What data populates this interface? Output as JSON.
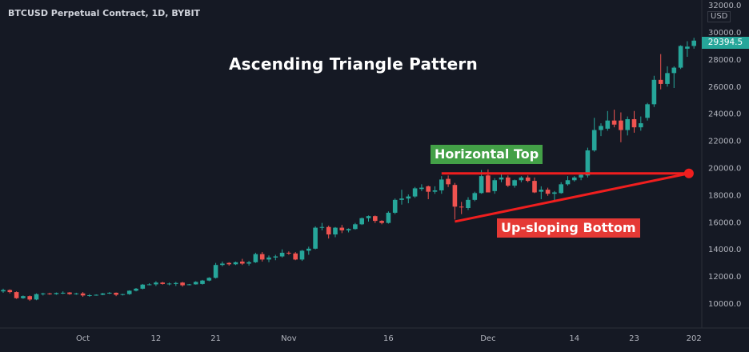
{
  "chart_data": {
    "type": "candlestick",
    "symbol_title": "BTCUSD Perpetual Contract, 1D, BYBIT",
    "title": "Ascending Triangle Pattern",
    "currency": "USD",
    "last_price": "29394.5",
    "ylim": [
      9000,
      32500
    ],
    "y_ticks": [
      "32000.0",
      "30000.0",
      "28000.0",
      "26000.0",
      "24000.0",
      "22000.0",
      "20000.0",
      "18000.0",
      "16000.0",
      "14000.0",
      "12000.0",
      "10000.0"
    ],
    "x_ticks": [
      {
        "label": "Oct",
        "date": "2020-10-01"
      },
      {
        "label": "12",
        "date": "2020-10-12"
      },
      {
        "label": "21",
        "date": "2020-10-21"
      },
      {
        "label": "Nov",
        "date": "2020-11-01"
      },
      {
        "label": "16",
        "date": "2020-11-16"
      },
      {
        "label": "Dec",
        "date": "2020-12-01"
      },
      {
        "label": "14",
        "date": "2020-12-14"
      },
      {
        "label": "23",
        "date": "2020-12-23"
      },
      {
        "label": "202",
        "date": "2021-01-01"
      }
    ],
    "colors": {
      "up": "#26a69a",
      "down": "#ef5350",
      "background": "#151924",
      "trendline": "#f01e1e",
      "top_label": "#43a047",
      "bottom_label": "#e53935"
    },
    "annotations": {
      "horizontal_top": {
        "label": "Horizontal Top",
        "price": 19600,
        "from": "2020-11-24",
        "to": "2020-12-31"
      },
      "upsloping_bottom": {
        "label": "Up-sloping Bottom",
        "from_date": "2020-11-26",
        "from_price": 16050,
        "to_date": "2020-12-31",
        "to_price": 19600
      }
    },
    "candles": [
      [
        "2020-09-19",
        10900,
        11100,
        10800,
        11000
      ],
      [
        "2020-09-20",
        11000,
        11050,
        10750,
        10850
      ],
      [
        "2020-09-21",
        10850,
        10900,
        10350,
        10400
      ],
      [
        "2020-09-22",
        10400,
        10600,
        10350,
        10550
      ],
      [
        "2020-09-23",
        10550,
        10600,
        10200,
        10300
      ],
      [
        "2020-09-24",
        10300,
        10750,
        10250,
        10700
      ],
      [
        "2020-09-25",
        10700,
        10800,
        10600,
        10750
      ],
      [
        "2020-09-26",
        10750,
        10800,
        10650,
        10700
      ],
      [
        "2020-09-27",
        10700,
        10820,
        10650,
        10780
      ],
      [
        "2020-09-28",
        10780,
        10900,
        10700,
        10800
      ],
      [
        "2020-09-29",
        10820,
        10850,
        10650,
        10700
      ],
      [
        "2020-09-30",
        10700,
        10800,
        10650,
        10750
      ],
      [
        "2020-10-01",
        10750,
        10850,
        10500,
        10600
      ],
      [
        "2020-10-02",
        10600,
        10700,
        10500,
        10620
      ],
      [
        "2020-10-03",
        10620,
        10680,
        10580,
        10650
      ],
      [
        "2020-10-04",
        10650,
        10780,
        10620,
        10750
      ],
      [
        "2020-10-05",
        10750,
        10850,
        10700,
        10800
      ],
      [
        "2020-10-06",
        10800,
        10820,
        10550,
        10650
      ],
      [
        "2020-10-07",
        10650,
        10720,
        10600,
        10700
      ],
      [
        "2020-10-08",
        10700,
        10980,
        10650,
        10950
      ],
      [
        "2020-10-09",
        10950,
        11150,
        10900,
        11100
      ],
      [
        "2020-10-10",
        11100,
        11450,
        11050,
        11400
      ],
      [
        "2020-10-11",
        11400,
        11500,
        11350,
        11420
      ],
      [
        "2020-10-12",
        11420,
        11650,
        11300,
        11550
      ],
      [
        "2020-10-13",
        11550,
        11600,
        11400,
        11450
      ],
      [
        "2020-10-14",
        11450,
        11550,
        11350,
        11480
      ],
      [
        "2020-10-15",
        11450,
        11600,
        11300,
        11520
      ],
      [
        "2020-10-16",
        11550,
        11600,
        11250,
        11350
      ],
      [
        "2020-10-17",
        11380,
        11450,
        11350,
        11420
      ],
      [
        "2020-10-18",
        11420,
        11650,
        11400,
        11600
      ],
      [
        "2020-10-19",
        11450,
        11750,
        11400,
        11700
      ],
      [
        "2020-10-20",
        11700,
        11950,
        11650,
        11900
      ],
      [
        "2020-10-21",
        11900,
        13000,
        11850,
        12850
      ],
      [
        "2020-10-22",
        12850,
        13100,
        12750,
        12950
      ],
      [
        "2020-10-23",
        13000,
        13050,
        12800,
        12900
      ],
      [
        "2020-10-24",
        12900,
        13100,
        12850,
        13050
      ],
      [
        "2020-10-25",
        13100,
        13300,
        12850,
        12950
      ],
      [
        "2020-10-26",
        12950,
        13150,
        12800,
        13050
      ],
      [
        "2020-10-27",
        13050,
        13750,
        13000,
        13650
      ],
      [
        "2020-10-28",
        13650,
        13800,
        13100,
        13250
      ],
      [
        "2020-10-29",
        13250,
        13550,
        13050,
        13400
      ],
      [
        "2020-10-30",
        13400,
        13600,
        13200,
        13480
      ],
      [
        "2020-10-31",
        13480,
        14000,
        13400,
        13750
      ],
      [
        "2020-11-01",
        13750,
        13850,
        13600,
        13700
      ],
      [
        "2020-11-02",
        13700,
        13800,
        13200,
        13250
      ],
      [
        "2020-11-03",
        13250,
        13950,
        13150,
        13900
      ],
      [
        "2020-11-04",
        13900,
        14200,
        13600,
        14050
      ],
      [
        "2020-11-05",
        14050,
        15700,
        14000,
        15600
      ],
      [
        "2020-11-06",
        15600,
        15950,
        15400,
        15650
      ],
      [
        "2020-11-07",
        15650,
        15750,
        14800,
        15100
      ],
      [
        "2020-11-08",
        15100,
        15650,
        14900,
        15600
      ],
      [
        "2020-11-09",
        15600,
        15800,
        15200,
        15400
      ],
      [
        "2020-11-10",
        15400,
        15550,
        15250,
        15500
      ],
      [
        "2020-11-11",
        15500,
        15950,
        15450,
        15850
      ],
      [
        "2020-11-12",
        15850,
        16350,
        15800,
        16300
      ],
      [
        "2020-11-13",
        16300,
        16500,
        16050,
        16450
      ],
      [
        "2020-11-14",
        16450,
        16500,
        15950,
        16100
      ],
      [
        "2020-11-15",
        16100,
        16150,
        15850,
        15950
      ],
      [
        "2020-11-16",
        15950,
        16800,
        15900,
        16700
      ],
      [
        "2020-11-17",
        16700,
        17750,
        16600,
        17650
      ],
      [
        "2020-11-18",
        17650,
        18400,
        17300,
        17750
      ],
      [
        "2020-11-19",
        17750,
        18050,
        17400,
        17900
      ],
      [
        "2020-11-20",
        17900,
        18600,
        17800,
        18500
      ],
      [
        "2020-11-21",
        18450,
        18800,
        18300,
        18550
      ],
      [
        "2020-11-22",
        18650,
        18700,
        17700,
        18250
      ],
      [
        "2020-11-23",
        18250,
        18650,
        18100,
        18350
      ],
      [
        "2020-11-24",
        18350,
        19400,
        18100,
        19150
      ],
      [
        "2020-11-25",
        19200,
        19450,
        18600,
        18800
      ],
      [
        "2020-11-26",
        18750,
        18900,
        16200,
        17150
      ],
      [
        "2020-11-27",
        17150,
        17500,
        16600,
        17100
      ],
      [
        "2020-11-28",
        17050,
        17850,
        16900,
        17650
      ],
      [
        "2020-11-29",
        17650,
        18250,
        17550,
        18150
      ],
      [
        "2020-11-30",
        18150,
        19850,
        18100,
        19400
      ],
      [
        "2020-12-01",
        19450,
        19900,
        18200,
        18200
      ],
      [
        "2020-12-02",
        18300,
        19250,
        18100,
        19100
      ],
      [
        "2020-12-03",
        19150,
        19550,
        18950,
        19300
      ],
      [
        "2020-12-04",
        19300,
        19450,
        18600,
        18700
      ],
      [
        "2020-12-05",
        18700,
        19150,
        18550,
        19100
      ],
      [
        "2020-12-06",
        19100,
        19400,
        18950,
        19300
      ],
      [
        "2020-12-07",
        19300,
        19450,
        18950,
        19050
      ],
      [
        "2020-12-08",
        19050,
        19300,
        18150,
        18200
      ],
      [
        "2020-12-09",
        18250,
        18650,
        17700,
        18400
      ],
      [
        "2020-12-10",
        18400,
        18550,
        17950,
        18100
      ],
      [
        "2020-12-11",
        18100,
        18300,
        17600,
        18200
      ],
      [
        "2020-12-12",
        18150,
        18950,
        18100,
        18800
      ],
      [
        "2020-12-13",
        18800,
        19400,
        18700,
        19100
      ],
      [
        "2020-12-14",
        19100,
        19400,
        19000,
        19300
      ],
      [
        "2020-12-15",
        19300,
        19550,
        19100,
        19500
      ],
      [
        "2020-12-16",
        19450,
        21500,
        19300,
        21300
      ],
      [
        "2020-12-17",
        21300,
        23700,
        21200,
        22800
      ],
      [
        "2020-12-18",
        22800,
        23300,
        22350,
        23100
      ],
      [
        "2020-12-19",
        22900,
        24200,
        22750,
        23500
      ],
      [
        "2020-12-20",
        23500,
        24300,
        23000,
        23200
      ],
      [
        "2020-12-21",
        23500,
        24100,
        21900,
        22800
      ],
      [
        "2020-12-22",
        22800,
        23800,
        22400,
        23600
      ],
      [
        "2020-12-23",
        23600,
        24200,
        22600,
        23000
      ],
      [
        "2020-12-24",
        23000,
        23800,
        22750,
        23300
      ],
      [
        "2020-12-25",
        23700,
        24800,
        23500,
        24700
      ],
      [
        "2020-12-26",
        24700,
        26800,
        24500,
        26500
      ],
      [
        "2020-12-27",
        26500,
        28400,
        25800,
        26200
      ],
      [
        "2020-12-28",
        26200,
        27500,
        26000,
        27000
      ],
      [
        "2020-12-29",
        27000,
        27500,
        25900,
        27400
      ],
      [
        "2020-12-30",
        27400,
        29050,
        27300,
        29000
      ],
      [
        "2020-12-31",
        28800,
        29350,
        28200,
        28950
      ],
      [
        "2021-01-01",
        29000,
        29600,
        28800,
        29394.5
      ]
    ]
  }
}
